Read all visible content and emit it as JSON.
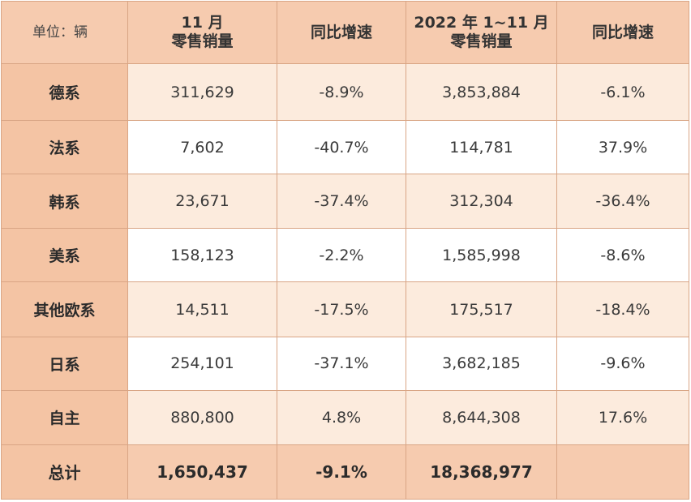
{
  "header": {
    "unit_label": "单位：辆",
    "col1_line1": "11 月",
    "col1_line2": "零售销量",
    "col2": "同比增速",
    "col3_line1": "2022 年 1~11 月",
    "col3_line2": "零售销量",
    "col4": "同比增速"
  },
  "rows": [
    {
      "label": "德系",
      "sales_nov": "311,629",
      "yoy_nov": "-8.9%",
      "sales_ytd": "3,853,884",
      "yoy_ytd": "-6.1%"
    },
    {
      "label": "法系",
      "sales_nov": "7,602",
      "yoy_nov": "-40.7%",
      "sales_ytd": "114,781",
      "yoy_ytd": "37.9%"
    },
    {
      "label": "韩系",
      "sales_nov": "23,671",
      "yoy_nov": "-37.4%",
      "sales_ytd": "312,304",
      "yoy_ytd": "-36.4%"
    },
    {
      "label": "美系",
      "sales_nov": "158,123",
      "yoy_nov": "-2.2%",
      "sales_ytd": "1,585,998",
      "yoy_ytd": "-8.6%"
    },
    {
      "label": "其他欧系",
      "sales_nov": "14,511",
      "yoy_nov": "-17.5%",
      "sales_ytd": "175,517",
      "yoy_ytd": "-18.4%"
    },
    {
      "label": "日系",
      "sales_nov": "254,101",
      "yoy_nov": "-37.1%",
      "sales_ytd": "3,682,185",
      "yoy_ytd": "-9.6%"
    },
    {
      "label": "自主",
      "sales_nov": "880,800",
      "yoy_nov": "4.8%",
      "sales_ytd": "8,644,308",
      "yoy_ytd": "17.6%"
    }
  ],
  "total": {
    "label": "总计",
    "sales_nov": "1,650,437",
    "yoy_nov": "-9.1%",
    "sales_ytd": "18,368,977",
    "yoy_ytd": ""
  },
  "colors": {
    "header_bg": "#f6cbaf",
    "label_bg": "#f4c4a4",
    "row_alt_bg": "#fcebdd",
    "row_bg": "#ffffff",
    "border": "#d9a585"
  }
}
